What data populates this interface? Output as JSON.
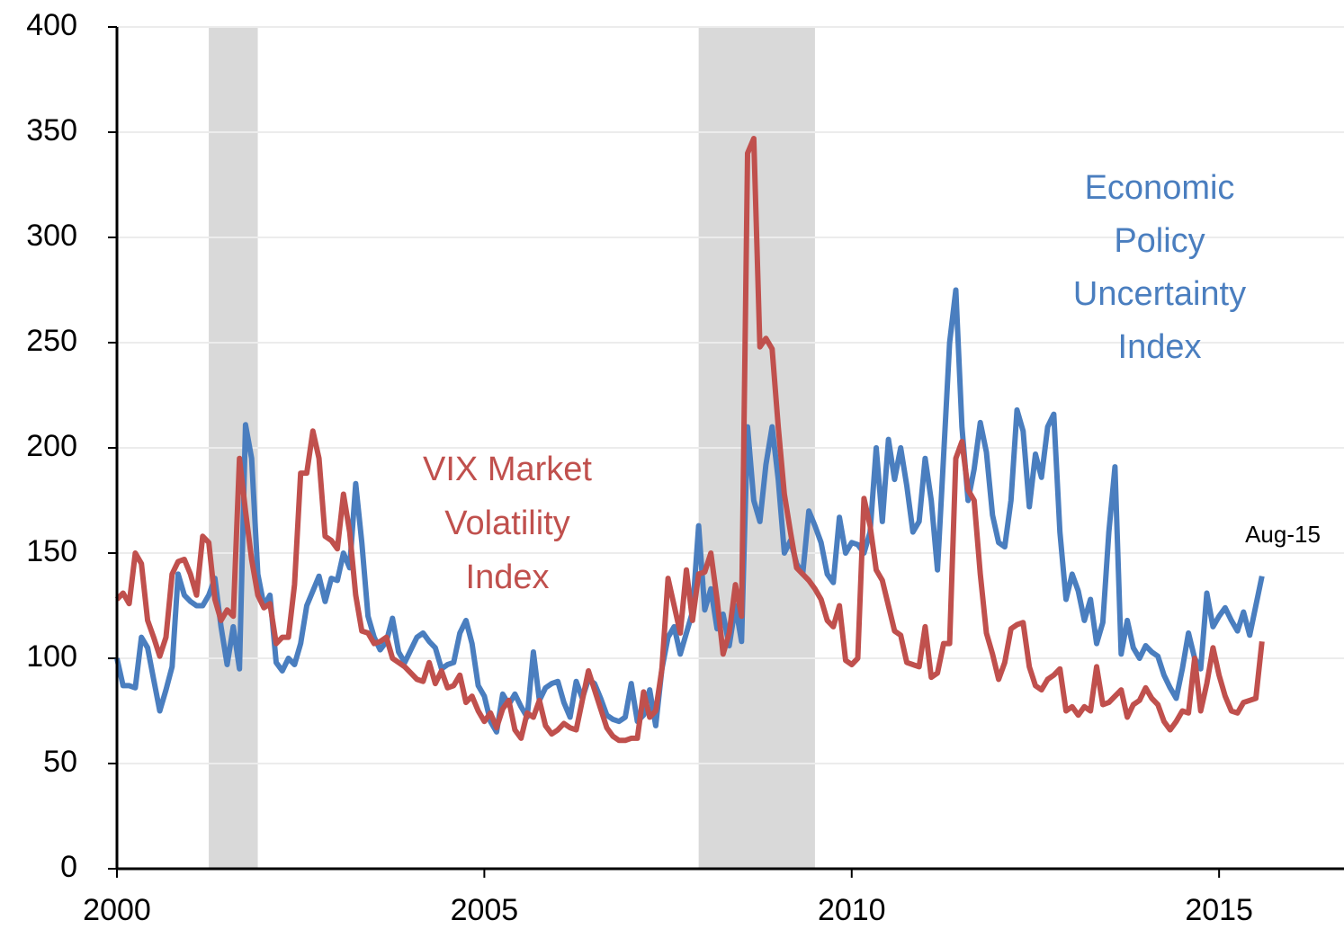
{
  "chart_data": {
    "type": "line",
    "xlim": [
      2000,
      2016.7
    ],
    "xticks": [
      2000,
      2005,
      2010,
      2015
    ],
    "ylim": [
      0,
      400
    ],
    "yticks": [
      0,
      50,
      100,
      150,
      200,
      250,
      300,
      350,
      400
    ],
    "grid": true,
    "recessions": [
      [
        2001.25,
        2001.917
      ],
      [
        2007.917,
        2009.5
      ]
    ],
    "recession_color": "#d9d9d9",
    "annotations": {
      "vix": [
        "VIX Market",
        "Volatility",
        "Index"
      ],
      "epu": [
        "Economic",
        "Policy",
        "Uncertainty",
        "Index"
      ],
      "last": "Aug-15"
    },
    "x": [
      2000,
      2000.083,
      2000.167,
      2000.25,
      2000.333,
      2000.417,
      2000.5,
      2000.583,
      2000.667,
      2000.75,
      2000.833,
      2000.917,
      2001,
      2001.083,
      2001.167,
      2001.25,
      2001.333,
      2001.417,
      2001.5,
      2001.583,
      2001.667,
      2001.75,
      2001.833,
      2001.917,
      2002,
      2002.083,
      2002.167,
      2002.25,
      2002.333,
      2002.417,
      2002.5,
      2002.583,
      2002.667,
      2002.75,
      2002.833,
      2002.917,
      2003,
      2003.083,
      2003.167,
      2003.25,
      2003.333,
      2003.417,
      2003.5,
      2003.583,
      2003.667,
      2003.75,
      2003.833,
      2003.917,
      2004,
      2004.083,
      2004.167,
      2004.25,
      2004.333,
      2004.417,
      2004.5,
      2004.583,
      2004.667,
      2004.75,
      2004.833,
      2004.917,
      2005,
      2005.083,
      2005.167,
      2005.25,
      2005.333,
      2005.417,
      2005.5,
      2005.583,
      2005.667,
      2005.75,
      2005.833,
      2005.917,
      2006,
      2006.083,
      2006.167,
      2006.25,
      2006.333,
      2006.417,
      2006.5,
      2006.583,
      2006.667,
      2006.75,
      2006.833,
      2006.917,
      2007,
      2007.083,
      2007.167,
      2007.25,
      2007.333,
      2007.417,
      2007.5,
      2007.583,
      2007.667,
      2007.75,
      2007.833,
      2007.917,
      2008,
      2008.083,
      2008.167,
      2008.25,
      2008.333,
      2008.417,
      2008.5,
      2008.583,
      2008.667,
      2008.75,
      2008.833,
      2008.917,
      2009,
      2009.083,
      2009.167,
      2009.25,
      2009.333,
      2009.417,
      2009.5,
      2009.583,
      2009.667,
      2009.75,
      2009.833,
      2009.917,
      2010,
      2010.083,
      2010.167,
      2010.25,
      2010.333,
      2010.417,
      2010.5,
      2010.583,
      2010.667,
      2010.75,
      2010.833,
      2010.917,
      2011,
      2011.083,
      2011.167,
      2011.25,
      2011.333,
      2011.417,
      2011.5,
      2011.583,
      2011.667,
      2011.75,
      2011.833,
      2011.917,
      2012,
      2012.083,
      2012.167,
      2012.25,
      2012.333,
      2012.417,
      2012.5,
      2012.583,
      2012.667,
      2012.75,
      2012.833,
      2012.917,
      2013,
      2013.083,
      2013.167,
      2013.25,
      2013.333,
      2013.417,
      2013.5,
      2013.583,
      2013.667,
      2013.75,
      2013.833,
      2013.917,
      2014,
      2014.083,
      2014.167,
      2014.25,
      2014.333,
      2014.417,
      2014.5,
      2014.583,
      2014.667,
      2014.75,
      2014.833,
      2014.917,
      2015,
      2015.083,
      2015.167,
      2015.25,
      2015.333,
      2015.417,
      2015.5,
      2015.583
    ],
    "series": [
      {
        "name": "Economic Policy Uncertainty Index",
        "color": "#4a7ebf",
        "values": [
          100,
          87,
          87,
          86,
          110,
          105,
          90,
          75,
          85,
          96,
          140,
          130,
          127,
          125,
          125,
          130,
          138,
          115,
          97,
          115,
          95,
          211,
          195,
          140,
          125,
          130,
          98,
          94,
          100,
          97,
          107,
          125,
          132,
          139,
          127,
          138,
          137,
          150,
          143,
          183,
          155,
          120,
          110,
          104,
          108,
          119,
          103,
          98,
          104,
          110,
          112,
          108,
          105,
          95,
          97,
          98,
          112,
          118,
          107,
          87,
          82,
          70,
          65,
          83,
          78,
          83,
          77,
          72,
          103,
          80,
          86,
          88,
          89,
          79,
          72,
          89,
          81,
          90,
          88,
          81,
          73,
          71,
          70,
          72,
          88,
          70,
          73,
          85,
          68,
          95,
          110,
          115,
          102,
          112,
          122,
          163,
          123,
          133,
          114,
          121,
          106,
          125,
          108,
          210,
          175,
          165,
          192,
          210,
          185,
          150,
          156,
          145,
          140,
          170,
          163,
          155,
          140,
          136,
          167,
          150,
          155,
          154,
          150,
          160,
          200,
          165,
          204,
          185,
          200,
          182,
          160,
          165,
          195,
          175,
          142,
          196,
          250,
          275,
          210,
          175,
          190,
          212,
          198,
          168,
          155,
          153,
          175,
          218,
          208,
          172,
          197,
          186,
          210,
          216,
          160,
          128,
          140,
          132,
          118,
          128,
          107,
          117,
          160,
          191,
          102,
          118,
          105,
          100,
          106,
          103,
          101,
          92,
          86,
          81,
          95,
          112,
          100,
          95,
          131,
          115,
          120,
          124,
          118,
          113,
          122,
          111,
          125,
          139
        ]
      },
      {
        "name": "VIX Market Volatility Index",
        "color": "#c0504d",
        "values": [
          128,
          131,
          126,
          150,
          145,
          118,
          110,
          101,
          110,
          140,
          146,
          147,
          140,
          130,
          158,
          155,
          128,
          118,
          123,
          120,
          195,
          170,
          147,
          130,
          124,
          126,
          107,
          110,
          110,
          135,
          188,
          188,
          208,
          195,
          158,
          156,
          152,
          178,
          160,
          130,
          113,
          112,
          107,
          108,
          110,
          100,
          98,
          96,
          93,
          90,
          89,
          98,
          88,
          94,
          86,
          87,
          92,
          79,
          82,
          75,
          70,
          74,
          67,
          76,
          80,
          66,
          62,
          74,
          72,
          80,
          68,
          64,
          66,
          69,
          67,
          66,
          80,
          94,
          85,
          76,
          67,
          63,
          61,
          61,
          62,
          62,
          84,
          72,
          75,
          95,
          138,
          125,
          112,
          142,
          118,
          140,
          141,
          150,
          128,
          102,
          112,
          135,
          120,
          340,
          347,
          248,
          252,
          247,
          210,
          178,
          160,
          143,
          140,
          137,
          133,
          128,
          118,
          115,
          125,
          99,
          97,
          100,
          176,
          163,
          142,
          137,
          125,
          113,
          111,
          98,
          97,
          96,
          115,
          91,
          93,
          107,
          107,
          195,
          203,
          180,
          175,
          140,
          112,
          102,
          90,
          98,
          114,
          116,
          117,
          96,
          87,
          85,
          90,
          92,
          95,
          75,
          77,
          73,
          77,
          75,
          96,
          78,
          79,
          82,
          85,
          72,
          78,
          80,
          86,
          81,
          78,
          70,
          66,
          70,
          75,
          74,
          100,
          75,
          88,
          105,
          92,
          82,
          75,
          74,
          79,
          80,
          81,
          108
        ]
      }
    ]
  }
}
